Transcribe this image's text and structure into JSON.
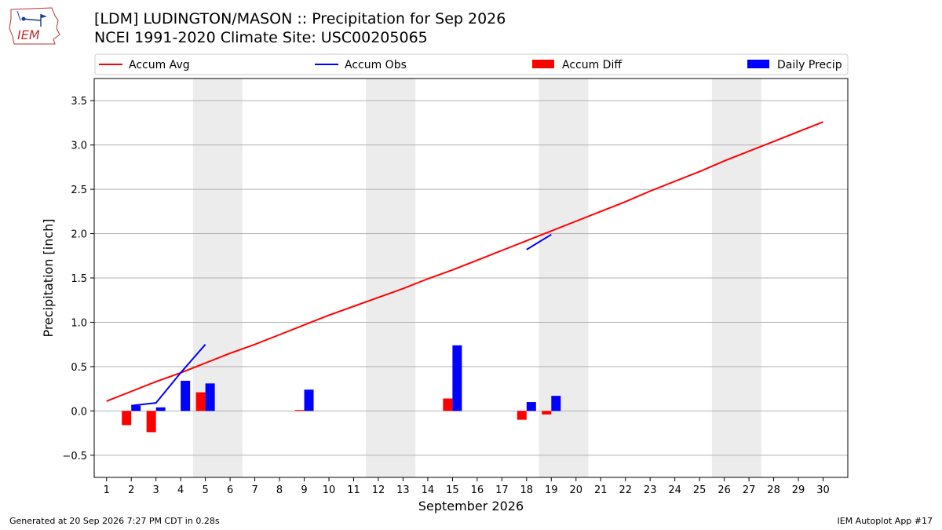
{
  "header": {
    "title_line1": "[LDM] LUDINGTON/MASON :: Precipitation for Sep 2026",
    "title_line2": "NCEI 1991-2020 Climate Site: USC00205065",
    "logo_text": "IEM"
  },
  "footer": {
    "generated": "Generated at 20 Sep 2026 7:27 PM CDT in 0.28s",
    "app": "IEM Autoplot App #17"
  },
  "colors": {
    "avg": "#ff0000",
    "obs": "#0000ff",
    "diff": "#ff0000",
    "daily": "#0000ff",
    "weekend_shade": "#ececec",
    "grid": "#b0b0b0"
  },
  "chart_data": {
    "type": "bar",
    "xlabel": "September 2026",
    "ylabel": "Precipitation [inch]",
    "xlim": [
      0.5,
      31
    ],
    "ylim": [
      -0.75,
      3.75
    ],
    "x_ticks": [
      1,
      2,
      3,
      4,
      5,
      6,
      7,
      8,
      9,
      10,
      11,
      12,
      13,
      14,
      15,
      16,
      17,
      18,
      19,
      20,
      21,
      22,
      23,
      24,
      25,
      26,
      27,
      28,
      29,
      30
    ],
    "y_ticks": [
      -0.5,
      0.0,
      0.5,
      1.0,
      1.5,
      2.0,
      2.5,
      3.0,
      3.5
    ],
    "y_tick_labels": [
      "−0.5",
      "0.0",
      "0.5",
      "1.0",
      "1.5",
      "2.0",
      "2.5",
      "3.0",
      "3.5"
    ],
    "grid": "horizontal",
    "legend": {
      "placement": "top",
      "entries": [
        "Accum Avg",
        "Accum Obs",
        "Accum Diff",
        "Daily Precip"
      ]
    },
    "weekend_shading": [
      [
        5,
        6
      ],
      [
        12,
        13
      ],
      [
        19,
        20
      ],
      [
        26,
        27
      ]
    ],
    "series": [
      {
        "name": "Accum Avg",
        "kind": "line",
        "x": [
          1,
          2,
          3,
          4,
          5,
          6,
          7,
          8,
          9,
          10,
          11,
          12,
          13,
          14,
          15,
          16,
          17,
          18,
          19,
          20,
          21,
          22,
          23,
          24,
          25,
          26,
          27,
          28,
          29,
          30
        ],
        "values": [
          0.11,
          0.22,
          0.33,
          0.43,
          0.54,
          0.65,
          0.75,
          0.86,
          0.97,
          1.08,
          1.18,
          1.28,
          1.38,
          1.49,
          1.59,
          1.7,
          1.81,
          1.92,
          2.03,
          2.14,
          2.25,
          2.36,
          2.48,
          2.59,
          2.7,
          2.82,
          2.93,
          3.04,
          3.15,
          3.26
        ]
      },
      {
        "name": "Accum Obs",
        "kind": "line",
        "segments": [
          {
            "x": [
              2,
              3,
              4,
              5
            ],
            "values": [
              0.06,
              0.09,
              0.43,
              0.75
            ]
          },
          {
            "x": [
              18,
              19
            ],
            "values": [
              1.82,
              1.99
            ]
          }
        ]
      },
      {
        "name": "Accum Diff",
        "kind": "bar",
        "x": [
          2,
          3,
          5,
          9,
          15,
          18,
          19
        ],
        "values": [
          -0.16,
          -0.24,
          0.21,
          0.01,
          0.14,
          -0.1,
          -0.04
        ]
      },
      {
        "name": "Daily Precip",
        "kind": "bar",
        "x": [
          2,
          3,
          4,
          5,
          9,
          15,
          18,
          19
        ],
        "values": [
          0.06,
          0.04,
          0.34,
          0.31,
          0.24,
          0.74,
          0.1,
          0.17
        ]
      }
    ]
  }
}
